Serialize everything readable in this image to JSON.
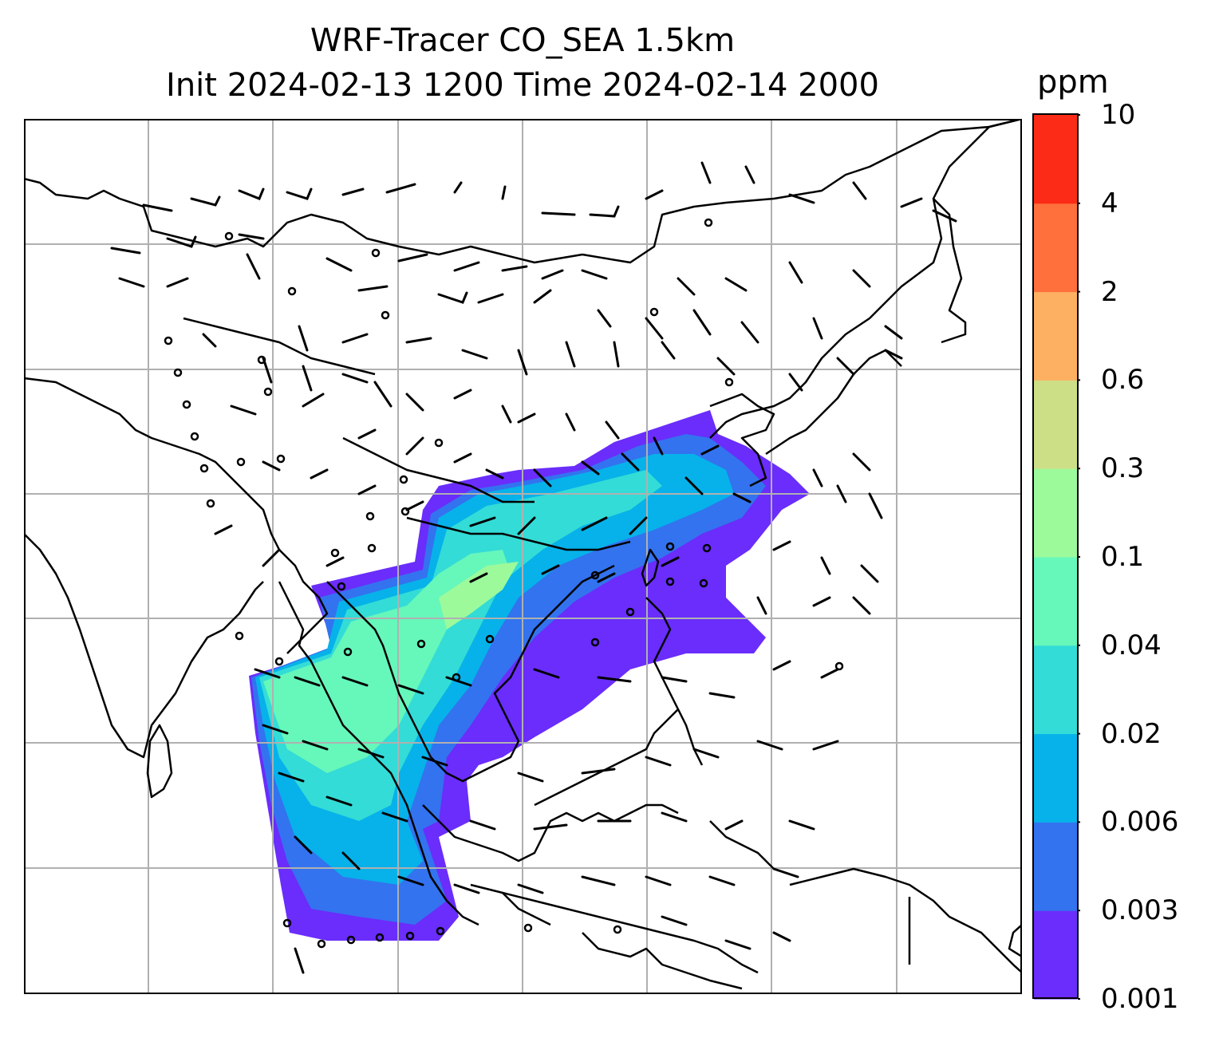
{
  "title": {
    "line1": "WRF-Tracer CO_SEA 1.5km",
    "line2": "Init 2024-02-13 1200 Time 2024-02-14 2000"
  },
  "colorbar": {
    "units": "ppm",
    "levels": [
      "0.001",
      "0.003",
      "0.006",
      "0.02",
      "0.04",
      "0.1",
      "0.3",
      "0.6",
      "2",
      "4",
      "10"
    ],
    "colors": [
      "#6a2dfb",
      "#3373ef",
      "#06b2e9",
      "#33dcd6",
      "#66f7bb",
      "#9cfa9b",
      "#cddf86",
      "#fdb062",
      "#ff703c",
      "#fb2b17"
    ]
  },
  "map": {
    "gridlines": true,
    "coastline_color": "#000000",
    "grid_color": "#b0b0b0",
    "wind_barbs": "black"
  }
}
